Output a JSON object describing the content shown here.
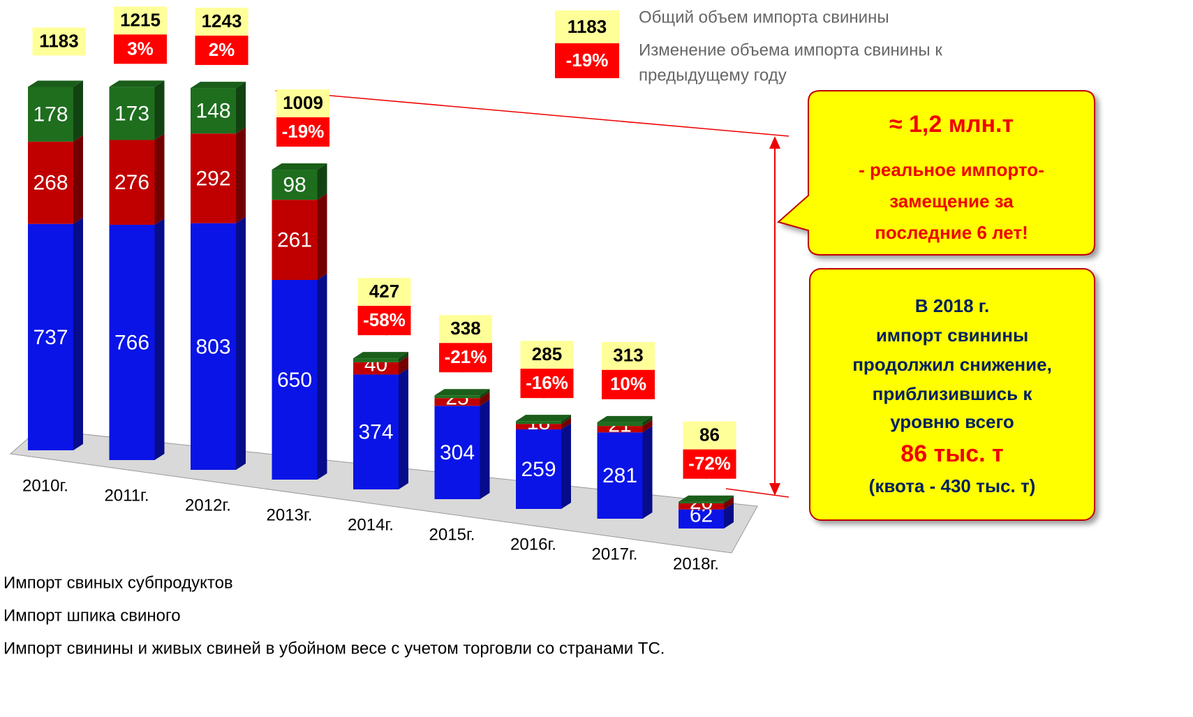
{
  "chart_data": {
    "type": "bar3d_stacked",
    "categories": [
      "2010г.",
      "2011г.",
      "2012г.",
      "2013г.",
      "2014г.",
      "2015г.",
      "2016г.",
      "2017г.",
      "2018г."
    ],
    "series": [
      {
        "name": "Импорт свинины и живых свиней в убойном весе с учетом торговли со странами ТС.",
        "color": "#0a14e6",
        "values": [
          737,
          766,
          803,
          650,
          374,
          304,
          259,
          281,
          62
        ]
      },
      {
        "name": "Импорт шпика свиного",
        "color": "#c00000",
        "values": [
          268,
          276,
          292,
          261,
          40,
          25,
          18,
          21,
          20
        ]
      },
      {
        "name": "Импорт свиных субпродуктов",
        "color": "#1e6e1e",
        "values": [
          178,
          173,
          148,
          98,
          13,
          9,
          9,
          12,
          5
        ]
      }
    ],
    "totals": [
      1183,
      1215,
      1243,
      1009,
      427,
      338,
      285,
      313,
      86
    ],
    "changes": [
      null,
      3,
      2,
      -19,
      -58,
      -21,
      -16,
      10,
      -72
    ],
    "change_labels": [
      null,
      "3%",
      "2%",
      "-19%",
      "-58%",
      "-21%",
      "-16%",
      "10%",
      "-72%"
    ],
    "legend_sample": {
      "total": "1183",
      "change": "-19%",
      "total_text": "Общий объем импорта свинины",
      "change_text": [
        "Изменение объема импорта свинины к",
        "предыдущему году"
      ]
    },
    "callout1": {
      "headline": "≈ 1,2 млн.т",
      "lines": [
        "- реальное импорто-",
        "замещение за",
        "последние 6 лет!"
      ]
    },
    "callout2": {
      "lines": [
        "В 2018 г.",
        "импорт свинины",
        "продолжил снижение,",
        "приблизившись к",
        "уровню всего"
      ],
      "highlight": "86 тыс. т",
      "note": "(квота - 430 тыс. т)"
    }
  }
}
